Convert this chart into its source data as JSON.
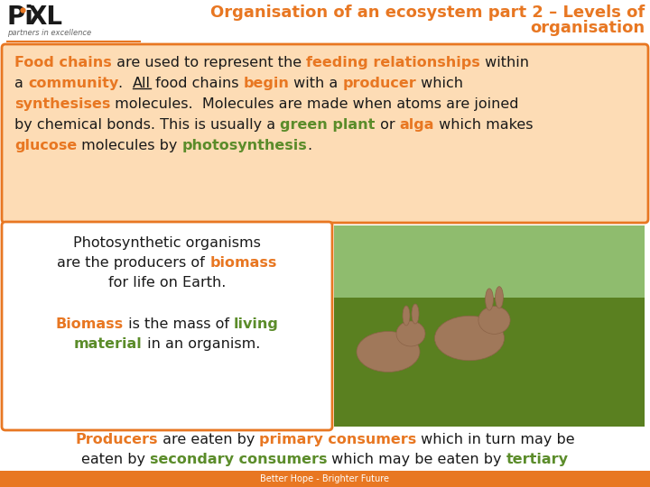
{
  "title_line1": "Organisation of an ecosystem part 2 – Levels of",
  "title_line2": "organisation",
  "title_color": "#E87722",
  "bg_color": "#FFFFFF",
  "header_line_color": "#E87722",
  "logo_sub": "partners in excellence",
  "top_box_bg": "#FDDCB5",
  "top_box_border": "#E87722",
  "bottom_left_box_bg": "#FFFFFF",
  "bottom_left_box_border": "#E87722",
  "orange": "#E87722",
  "green": "#5B8C2A",
  "dark": "#1A1A1A",
  "footer_text": "Better Hope - Brighter Future",
  "footer_bg": "#E87722",
  "footer_text_color": "#FFFFFF"
}
